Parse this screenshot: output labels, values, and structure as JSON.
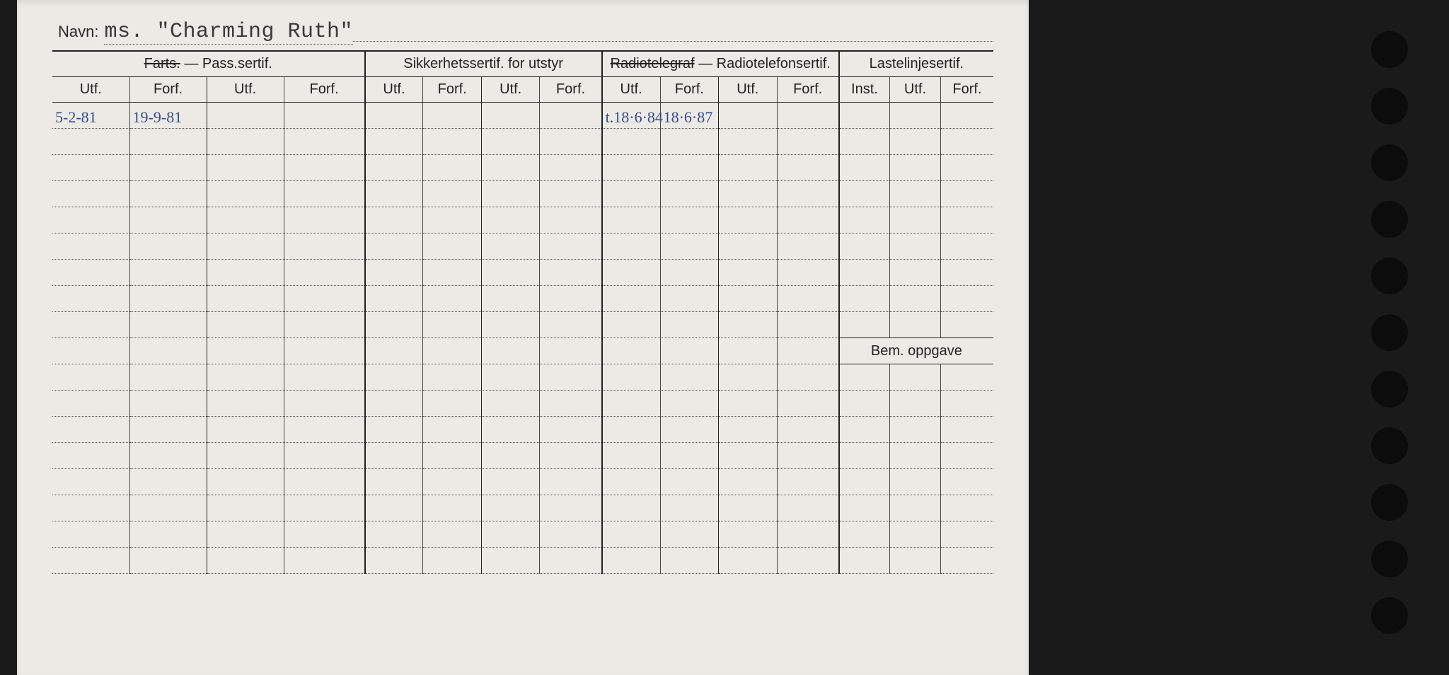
{
  "navn_label": "Navn:",
  "navn_value": "ms. \"Charming Ruth\"",
  "sections": {
    "pass": {
      "title_prefix": "Farts.",
      "title_sep": " — ",
      "title_main": "Pass.sertif."
    },
    "sikkerhet": {
      "title": "Sikkerhetssertif. for utstyr"
    },
    "radio": {
      "title_prefix": "Radiotelegraf",
      "title_sep": " — ",
      "title_main": "Radiotelefonsertif."
    },
    "laste": {
      "title": "Lastelinjesertif."
    }
  },
  "sub": {
    "utf": "Utf.",
    "forf": "Forf.",
    "inst": "Inst."
  },
  "bem": "Bem. oppgave",
  "rows": [
    {
      "pass_utf1": "5-2-81",
      "pass_forf1": "19-9-81",
      "radio_utf1": "t.18·6·84",
      "radio_forf1": "18·6·87"
    },
    {},
    {},
    {},
    {},
    {},
    {},
    {},
    {},
    {},
    {},
    {},
    {},
    {},
    {},
    {},
    {},
    {}
  ],
  "layout": {
    "col_widths_pct": [
      8.2,
      8.2,
      8.2,
      8.6,
      6.2,
      6.2,
      6.2,
      6.6,
      6.2,
      6.2,
      6.2,
      6.6,
      5.4,
      5.4,
      5.6
    ],
    "bem_row_index": 9,
    "num_holes": 11
  },
  "colors": {
    "paper": "#ebeae4",
    "ink": "#222222",
    "handwriting": "#3b4a8a",
    "dotted": "#555555",
    "background": "#1a1a1a"
  },
  "typography": {
    "header_fontsize_pt": 15,
    "navn_value_fontsize_pt": 22,
    "handwriting_fontsize_pt": 16
  }
}
